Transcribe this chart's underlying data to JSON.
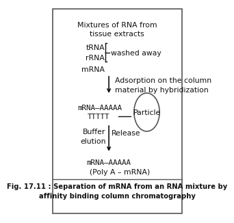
{
  "title": "Mixtures of RNA from\ntissue extracts",
  "bg_color": "#ffffff",
  "border_color": "#333333",
  "fig_caption": "Fig. 17.11 : Separation of mRNA from an RNA mixture by\naffinity binding column chromatography",
  "text_color": "#111111",
  "trna": "tRNA",
  "rrna": "rRNA",
  "mrna": "mRNA",
  "washed_away": "washed away",
  "adsorption": "Adsorption on the column\nmaterial by hybridization",
  "mrna_aaaaa": "mRNA—AAAAA",
  "ttttt": "TTTTT—",
  "particle_label": "Particle",
  "buffer_label": "Buffer\nelution",
  "release_label": "Release",
  "mrna_aaaaa2": "mRNA—AAAAA",
  "poly_a": "(Poly A – mRNA)"
}
